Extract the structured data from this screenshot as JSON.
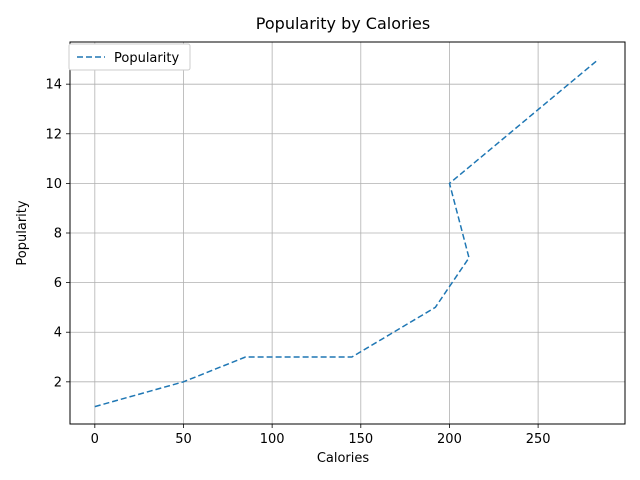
{
  "chart_data": {
    "type": "line",
    "title": "Popularity by Calories",
    "xlabel": "Calories",
    "ylabel": "Popularity",
    "xlim": [
      -14,
      299
    ],
    "ylim": [
      0.3,
      15.7
    ],
    "xticks": [
      0,
      50,
      100,
      150,
      200,
      250
    ],
    "yticks": [
      2,
      4,
      6,
      8,
      10,
      12,
      14
    ],
    "grid": true,
    "legend": "top-left",
    "series": [
      {
        "name": "Popularity",
        "color": "#1f77b4",
        "linestyle": "dashed",
        "x": [
          0,
          50,
          85,
          145,
          192,
          211,
          200,
          284
        ],
        "y": [
          1,
          2,
          3,
          3,
          5,
          7,
          10,
          15
        ]
      }
    ]
  }
}
